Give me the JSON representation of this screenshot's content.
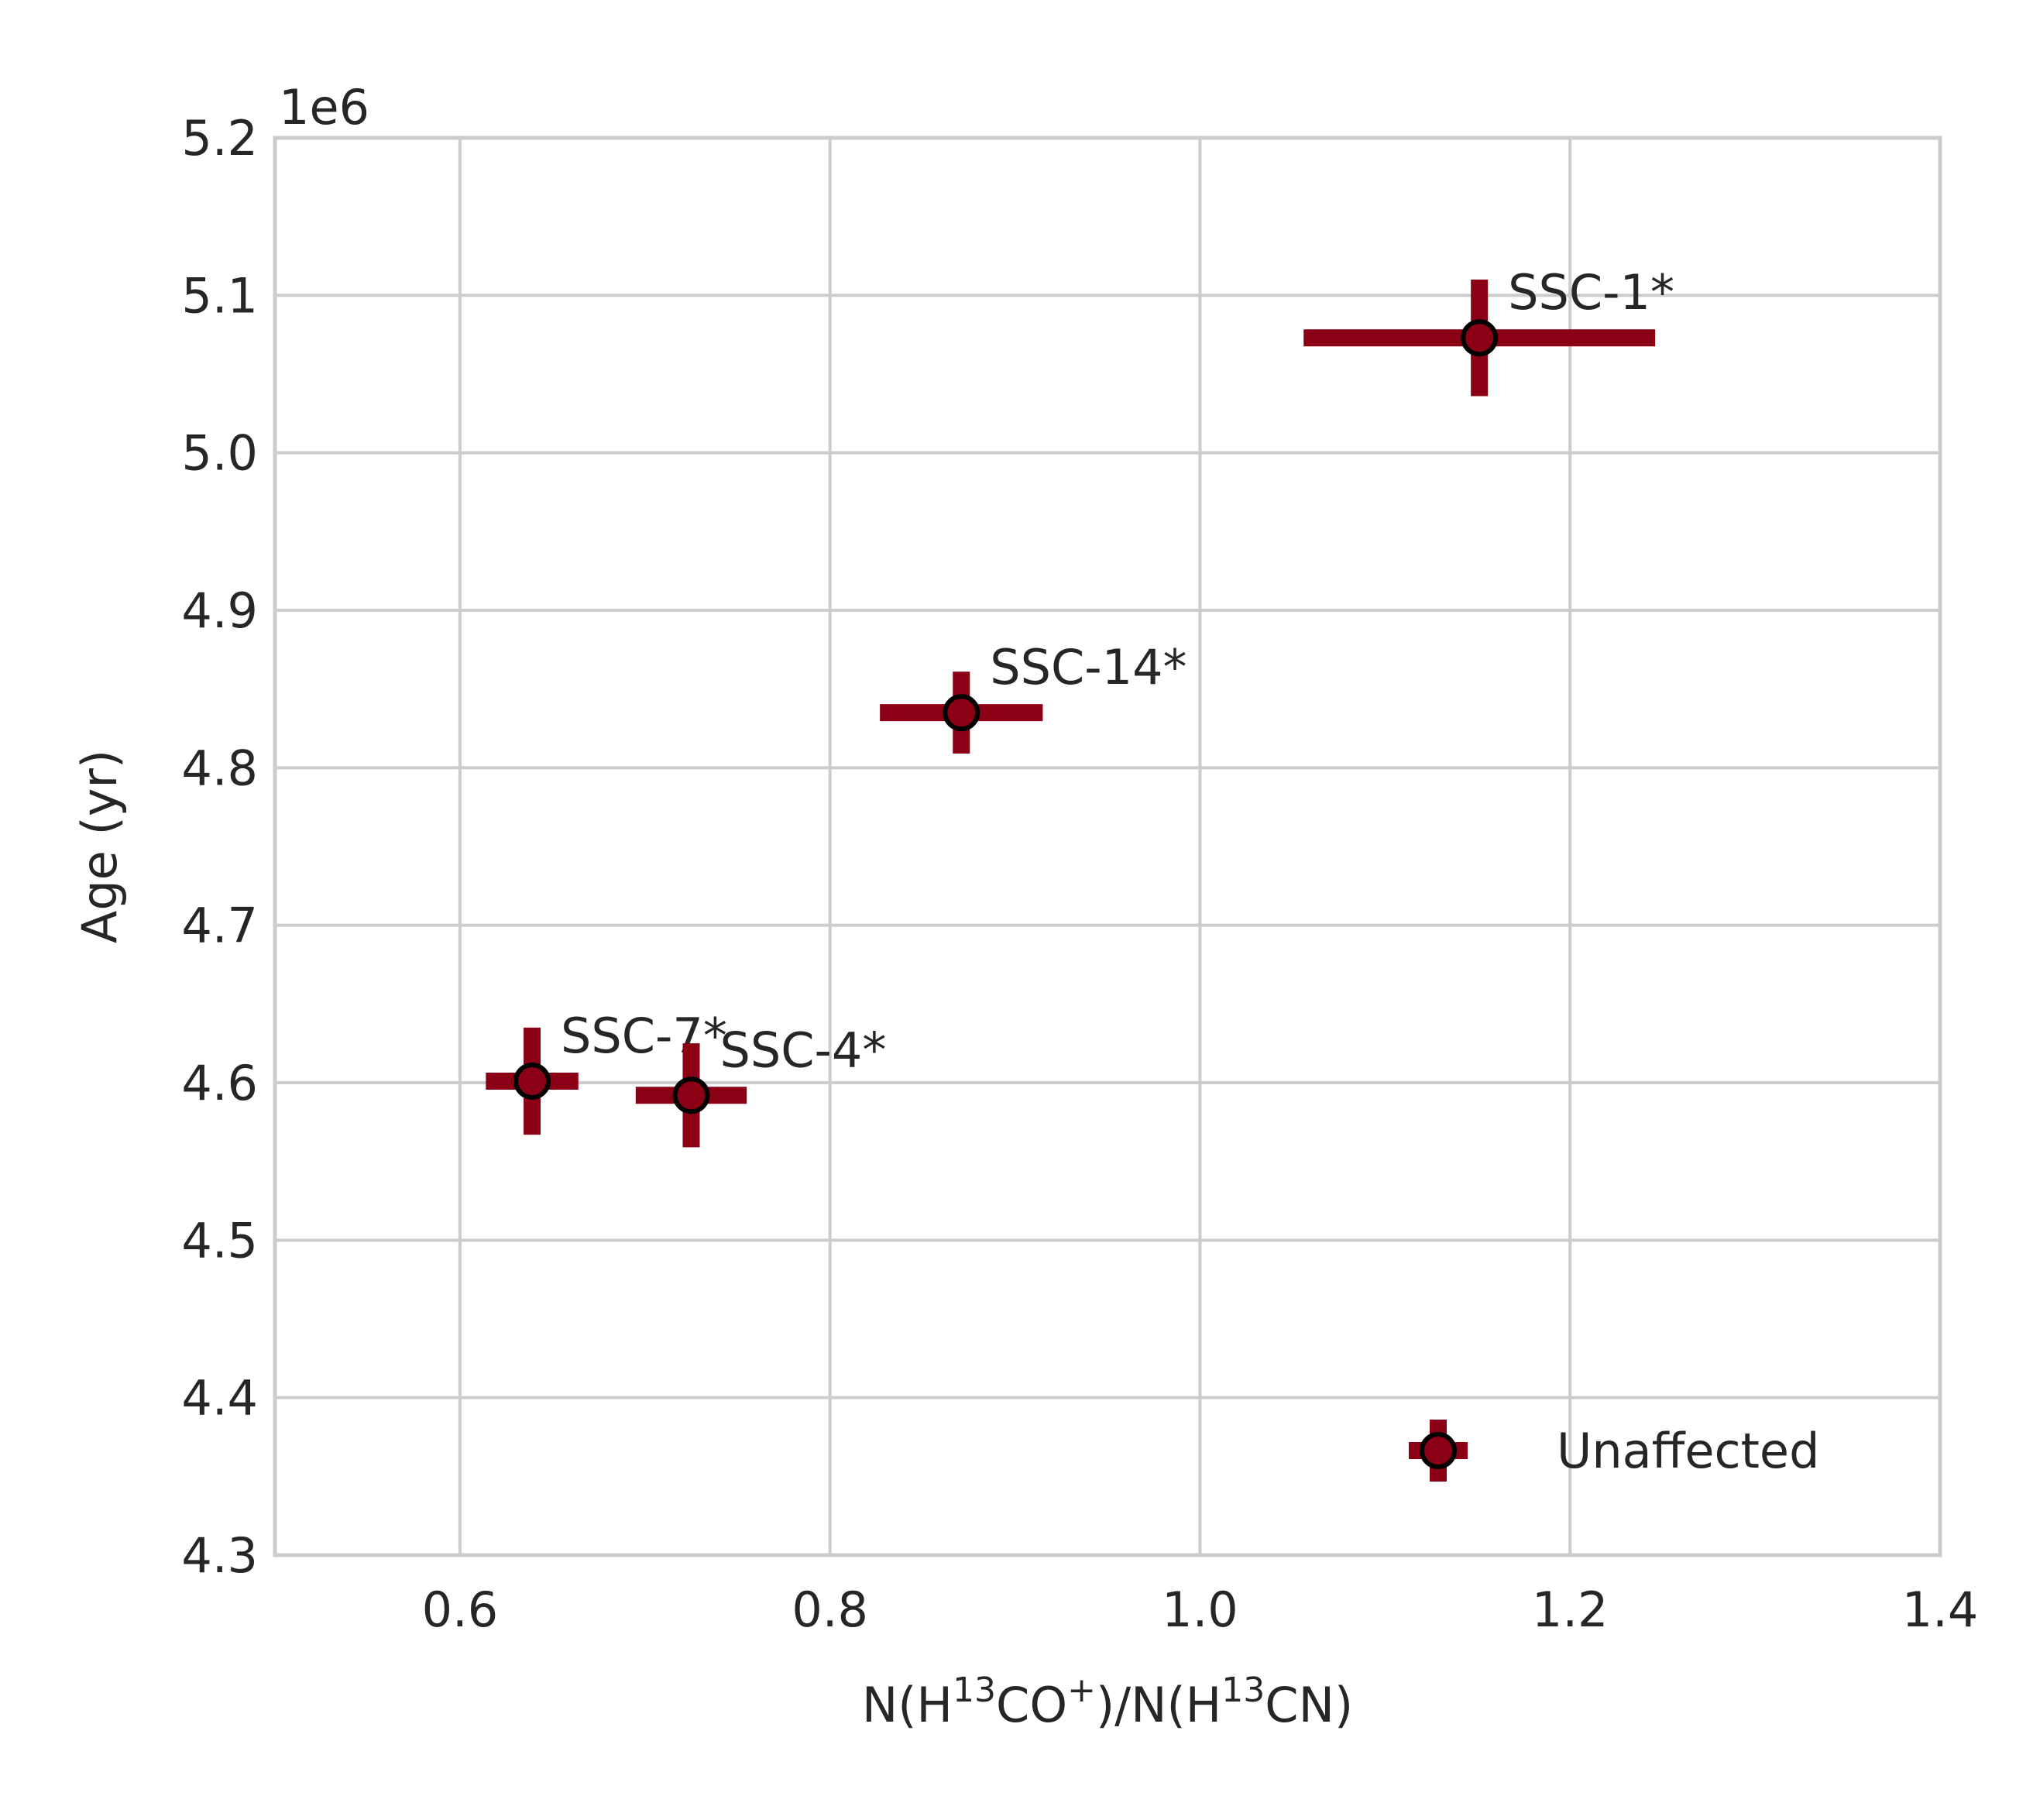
{
  "chart_data": {
    "type": "scatter",
    "xlabel_parts": [
      "N(H",
      "13",
      "CO",
      "+",
      ")/N(H",
      "13",
      "CN)"
    ],
    "ylabel": "Age (yr)",
    "y_offset_label": "1e6",
    "y_scale_factor": 1000000,
    "xlim": [
      0.5,
      1.4
    ],
    "ylim": [
      4.3,
      5.2
    ],
    "x_ticks": [
      0.6,
      0.8,
      1.0,
      1.2,
      1.4
    ],
    "x_tick_labels": [
      "0.6",
      "0.8",
      "1.0",
      "1.2",
      "1.4"
    ],
    "y_ticks": [
      4.3,
      4.4,
      4.5,
      4.6,
      4.7,
      4.8,
      4.9,
      5.0,
      5.1,
      5.2
    ],
    "y_tick_labels": [
      "4.3",
      "4.4",
      "4.5",
      "4.6",
      "4.7",
      "4.8",
      "4.9",
      "5.0",
      "5.1",
      "5.2"
    ],
    "grid": true,
    "legend_position": "bottom-right",
    "series": [
      {
        "name": "Unaffected",
        "color": "#8b0014",
        "marker_edge": "#000000",
        "points": [
          {
            "label": "SSC-1*",
            "x": 1.151,
            "y": 5.073,
            "xerr": 0.095,
            "yerr": 0.037
          },
          {
            "label": "SSC-14*",
            "x": 0.871,
            "y": 4.835,
            "xerr": 0.044,
            "yerr": 0.026
          },
          {
            "label": "SSC-7*",
            "x": 0.639,
            "y": 4.601,
            "xerr": 0.025,
            "yerr": 0.034
          },
          {
            "label": "SSC-4*",
            "x": 0.725,
            "y": 4.592,
            "xerr": 0.03,
            "yerr": 0.033
          }
        ]
      }
    ]
  }
}
